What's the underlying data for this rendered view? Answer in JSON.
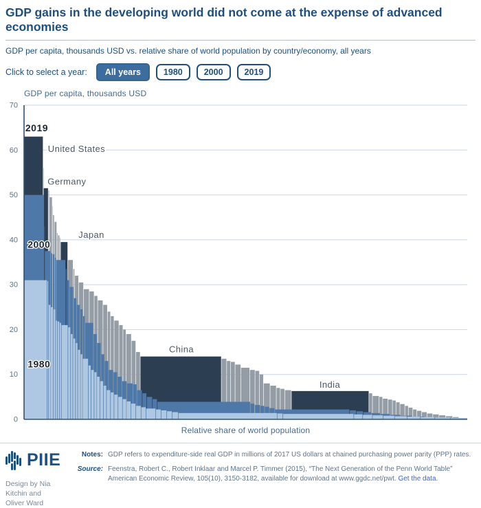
{
  "header": {
    "title": "GDP gains in the developing world did not come at the expense of advanced economies",
    "subtitle": "GDP per capita, thousands USD vs. relative share of world population by country/economy, all years",
    "year_selector_label": "Click to select a year:",
    "year_buttons": [
      {
        "label": "All years",
        "selected": true
      },
      {
        "label": "1980",
        "selected": false
      },
      {
        "label": "2000",
        "selected": false
      },
      {
        "label": "2019",
        "selected": false
      }
    ]
  },
  "chart_data": {
    "type": "marimekko",
    "title": "GDP per capita, thousands USD",
    "xlabel": "Relative share of world population",
    "ylim": [
      0,
      70
    ],
    "yticks": [
      0,
      10,
      20,
      30,
      40,
      50,
      60,
      70
    ],
    "grid": "horizontal",
    "bar_format": "each bar = [width as % of world population, GDP per capita in thousands USD, optional highlighted country name]",
    "highlighted_countries": [
      "United States",
      "Germany",
      "Japan",
      "China",
      "India"
    ],
    "series": [
      {
        "year": "2019",
        "color": "#949da5",
        "highlight_color": "#2b3e52",
        "bars": [
          [
            4.3,
            63,
            "United States"
          ],
          [
            0.09,
            56
          ],
          [
            1.07,
            51.5,
            "Germany"
          ],
          [
            0.25,
            51
          ],
          [
            0.65,
            49.5
          ],
          [
            0.12,
            47.5
          ],
          [
            0.35,
            45.5
          ],
          [
            0.55,
            44
          ],
          [
            0.25,
            41.5
          ],
          [
            0.4,
            41
          ],
          [
            0.2,
            40.5
          ],
          [
            1.63,
            39.5,
            "Japan"
          ],
          [
            1.2,
            35.5
          ],
          [
            0.35,
            33.5
          ],
          [
            0.9,
            32
          ],
          [
            1.1,
            30.5
          ],
          [
            1.3,
            29
          ],
          [
            1.1,
            28.5
          ],
          [
            0.8,
            27.5
          ],
          [
            1.2,
            26.5
          ],
          [
            1.0,
            25.5
          ],
          [
            0.7,
            24
          ],
          [
            0.8,
            23
          ],
          [
            1.1,
            22
          ],
          [
            0.9,
            21
          ],
          [
            0.7,
            20
          ],
          [
            1.2,
            19
          ],
          [
            1.0,
            17.5
          ],
          [
            1.0,
            15
          ],
          [
            18.3,
            14,
            "China"
          ],
          [
            1.2,
            13.5
          ],
          [
            0.9,
            13
          ],
          [
            1.0,
            12.8
          ],
          [
            1.3,
            12.2
          ],
          [
            2.0,
            11.5
          ],
          [
            1.2,
            11
          ],
          [
            1.0,
            10.8
          ],
          [
            0.9,
            10
          ],
          [
            1.5,
            8
          ],
          [
            1.4,
            7.5
          ],
          [
            0.9,
            7
          ],
          [
            1.0,
            6.8
          ],
          [
            1.5,
            6.5
          ],
          [
            17.5,
            6.3,
            "India"
          ],
          [
            0.8,
            5.8
          ],
          [
            1.5,
            5.2
          ],
          [
            0.8,
            5
          ],
          [
            1.2,
            4.6
          ],
          [
            1.0,
            4.4
          ],
          [
            0.8,
            4.2
          ],
          [
            0.9,
            3.8
          ],
          [
            1.1,
            3.4
          ],
          [
            0.8,
            3
          ],
          [
            1.0,
            2.6
          ],
          [
            0.9,
            2.2
          ],
          [
            1.1,
            1.9
          ],
          [
            1.2,
            1.6
          ],
          [
            1.3,
            1.3
          ],
          [
            1.4,
            1.1
          ],
          [
            1.5,
            0.9
          ],
          [
            1.6,
            0.7
          ],
          [
            1.4,
            0.5
          ],
          [
            1.89,
            0.3
          ]
        ]
      },
      {
        "year": "2000",
        "color": "#4d78a7",
        "bars": [
          [
            4.55,
            50,
            "United States"
          ],
          [
            0.1,
            43
          ],
          [
            1.35,
            37.5,
            "Germany"
          ],
          [
            0.4,
            37
          ],
          [
            0.5,
            36.8
          ],
          [
            0.35,
            36
          ],
          [
            2.1,
            35.5,
            "Japan"
          ],
          [
            0.3,
            33.5
          ],
          [
            0.6,
            31
          ],
          [
            0.9,
            29.5
          ],
          [
            0.7,
            27
          ],
          [
            0.8,
            25.5
          ],
          [
            0.6,
            24.5
          ],
          [
            0.5,
            23
          ],
          [
            1.9,
            21.5
          ],
          [
            0.8,
            19
          ],
          [
            0.9,
            17
          ],
          [
            0.8,
            14.5
          ],
          [
            0.9,
            13
          ],
          [
            1.1,
            11
          ],
          [
            0.9,
            10.5
          ],
          [
            1.0,
            9.5
          ],
          [
            1.1,
            8.5
          ],
          [
            1.4,
            8
          ],
          [
            0.9,
            7.8
          ],
          [
            1.2,
            6.5
          ],
          [
            1.0,
            5.8
          ],
          [
            1.3,
            5
          ],
          [
            1.1,
            4.5
          ],
          [
            21.0,
            3.9,
            "China"
          ],
          [
            1.0,
            3.5
          ],
          [
            1.2,
            3.2
          ],
          [
            1.0,
            3
          ],
          [
            1.1,
            2.8
          ],
          [
            1.2,
            2.5
          ],
          [
            16.9,
            2.2,
            "India"
          ],
          [
            1.5,
            2
          ],
          [
            1.6,
            1.8
          ],
          [
            1.8,
            1.6
          ],
          [
            2.0,
            1.4
          ],
          [
            2.2,
            1.2
          ],
          [
            2.4,
            1.0
          ],
          [
            2.6,
            0.8
          ],
          [
            2.8,
            0.6
          ],
          [
            3.4,
            0.4
          ],
          [
            6.25,
            0.25
          ]
        ]
      },
      {
        "year": "1980",
        "color": "#aec8e3",
        "bars": [
          [
            5.2,
            31,
            "United States"
          ],
          [
            0.3,
            30.8
          ],
          [
            0.5,
            25.5
          ],
          [
            0.6,
            25
          ],
          [
            0.5,
            24.5
          ],
          [
            0.4,
            22
          ],
          [
            0.5,
            21.8
          ],
          [
            0.4,
            21.5
          ],
          [
            1.5,
            21,
            "Japan"
          ],
          [
            0.6,
            20.5
          ],
          [
            0.5,
            19
          ],
          [
            0.6,
            18
          ],
          [
            0.5,
            17
          ],
          [
            0.6,
            15.5
          ],
          [
            0.5,
            14.5
          ],
          [
            1.3,
            13.5,
            "Germany"
          ],
          [
            0.6,
            12
          ],
          [
            0.7,
            11
          ],
          [
            0.6,
            10.5
          ],
          [
            0.7,
            9.5
          ],
          [
            0.8,
            8.5
          ],
          [
            0.7,
            7.5
          ],
          [
            0.9,
            6.5
          ],
          [
            0.8,
            6
          ],
          [
            0.9,
            5.5
          ],
          [
            1.0,
            5
          ],
          [
            0.9,
            4.5
          ],
          [
            1.0,
            4
          ],
          [
            1.1,
            3.5
          ],
          [
            1.2,
            3
          ],
          [
            1.1,
            2.7
          ],
          [
            2.2,
            2.4
          ],
          [
            1.2,
            2.2
          ],
          [
            1.3,
            2
          ],
          [
            1.2,
            1.8
          ],
          [
            1.4,
            1.6
          ],
          [
            22.3,
            1.4,
            "China"
          ],
          [
            1.3,
            1.3
          ],
          [
            16.0,
            1.2,
            "India"
          ],
          [
            2.0,
            1.1
          ],
          [
            2.2,
            1.0
          ],
          [
            2.4,
            0.9
          ],
          [
            2.6,
            0.8
          ],
          [
            2.8,
            0.7
          ],
          [
            3.0,
            0.6
          ],
          [
            3.2,
            0.5
          ],
          [
            3.6,
            0.4
          ],
          [
            3.8,
            0.3
          ]
        ]
      }
    ],
    "annotations": [
      {
        "text": "2019",
        "x_pct": 0.3,
        "value": 64.2,
        "class": "year",
        "anchor": "start"
      },
      {
        "text": "2000",
        "x_pct": 0.8,
        "value": 38.2,
        "class": "year",
        "anchor": "start"
      },
      {
        "text": "1980",
        "x_pct": 0.8,
        "value": 11.6,
        "class": "year",
        "anchor": "start"
      },
      {
        "text": "United States",
        "x_pct": 5.4,
        "value": 59.6,
        "class": "country",
        "anchor": "start"
      },
      {
        "text": "Germany",
        "x_pct": 5.3,
        "value": 52.3,
        "class": "country",
        "anchor": "start"
      },
      {
        "text": "Japan",
        "x_pct": 12.3,
        "value": 40.4,
        "class": "country",
        "anchor": "start"
      },
      {
        "text": "China",
        "x_pct": 35.5,
        "value": 14.9,
        "class": "country",
        "anchor": "middle"
      },
      {
        "text": "India",
        "x_pct": 69.0,
        "value": 7.05,
        "class": "country",
        "anchor": "middle"
      }
    ]
  },
  "footer": {
    "logo_text": "PIIE",
    "credit": "Design by Nia Kitchin and Oliver Ward",
    "notes_label": "Notes:",
    "notes": "GDP refers to expenditure-side real GDP in millions of 2017 US dollars at chained purchasing power parity (PPP) rates.",
    "source_label": "Source:",
    "source": "Feenstra, Robert C., Robert Inklaar and Marcel P. Timmer (2015), “The Next Generation of the Penn World Table” American Economic Review, 105(10), 3150-3182, available for download at www.ggdc.net/pwt.",
    "source_link": "Get the data."
  }
}
